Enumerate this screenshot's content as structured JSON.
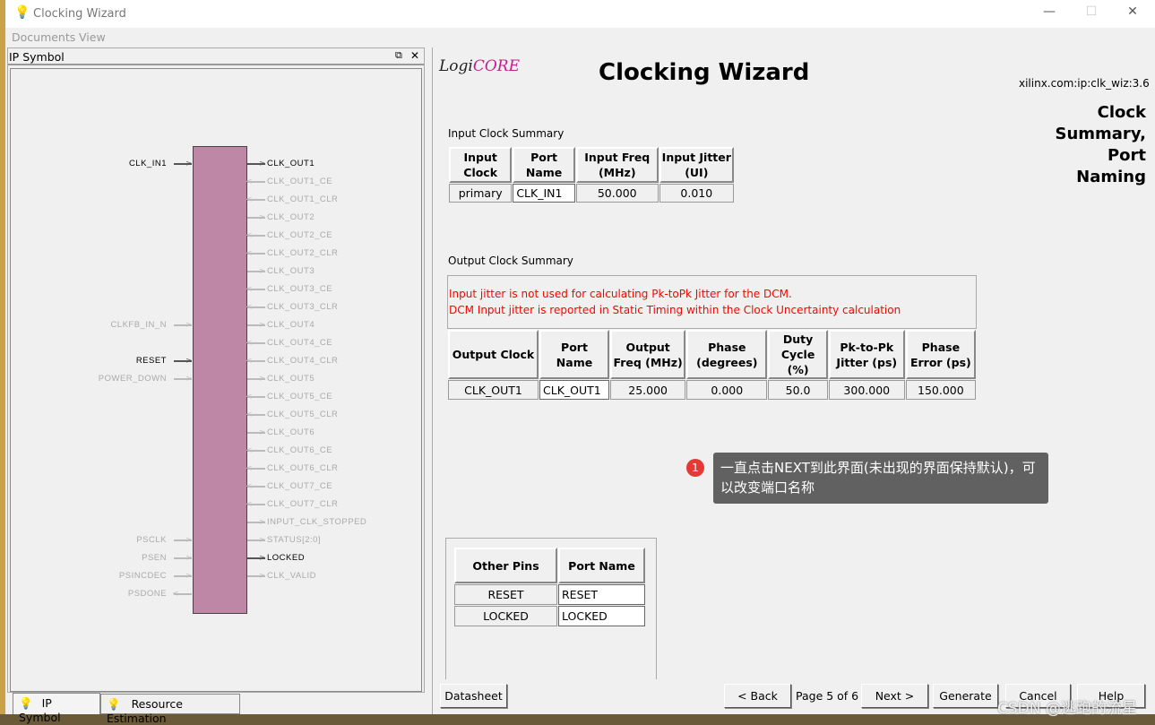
{
  "window": {
    "title": "Clocking Wizard",
    "minimize": "—",
    "maximize": "☐",
    "close": "✕"
  },
  "menu": [
    "Documents",
    "View"
  ],
  "left_panel": {
    "title": "IP Symbol",
    "restore_icon": "⧉",
    "close_icon": "✕",
    "left_pins": [
      {
        "name": "CLK_IN1",
        "active": true,
        "dir": "in"
      },
      {
        "name": "CLKFB_IN_N",
        "active": false,
        "dir": "in"
      },
      {
        "name": "RESET",
        "active": true,
        "dir": "in"
      },
      {
        "name": "POWER_DOWN",
        "active": false,
        "dir": "in"
      },
      {
        "name": "PSCLK",
        "active": false,
        "dir": "in"
      },
      {
        "name": "PSEN",
        "active": false,
        "dir": "in"
      },
      {
        "name": "PSINCDEC",
        "active": false,
        "dir": "in"
      },
      {
        "name": "PSDONE",
        "active": false,
        "dir": "out"
      }
    ],
    "right_pins": [
      {
        "name": "CLK_OUT1",
        "active": true,
        "dir": "out"
      },
      {
        "name": "CLK_OUT1_CE",
        "active": false,
        "dir": "in"
      },
      {
        "name": "CLK_OUT1_CLR",
        "active": false,
        "dir": "in"
      },
      {
        "name": "CLK_OUT2",
        "active": false,
        "dir": "out"
      },
      {
        "name": "CLK_OUT2_CE",
        "active": false,
        "dir": "in"
      },
      {
        "name": "CLK_OUT2_CLR",
        "active": false,
        "dir": "in"
      },
      {
        "name": "CLK_OUT3",
        "active": false,
        "dir": "out"
      },
      {
        "name": "CLK_OUT3_CE",
        "active": false,
        "dir": "in"
      },
      {
        "name": "CLK_OUT3_CLR",
        "active": false,
        "dir": "in"
      },
      {
        "name": "CLK_OUT4",
        "active": false,
        "dir": "out"
      },
      {
        "name": "CLK_OUT4_CE",
        "active": false,
        "dir": "in"
      },
      {
        "name": "CLK_OUT4_CLR",
        "active": false,
        "dir": "in"
      },
      {
        "name": "CLK_OUT5",
        "active": false,
        "dir": "out"
      },
      {
        "name": "CLK_OUT5_CE",
        "active": false,
        "dir": "in"
      },
      {
        "name": "CLK_OUT5_CLR",
        "active": false,
        "dir": "in"
      },
      {
        "name": "CLK_OUT6",
        "active": false,
        "dir": "out"
      },
      {
        "name": "CLK_OUT6_CE",
        "active": false,
        "dir": "in"
      },
      {
        "name": "CLK_OUT6_CLR",
        "active": false,
        "dir": "in"
      },
      {
        "name": "CLK_OUT7_CE",
        "active": false,
        "dir": "in"
      },
      {
        "name": "CLK_OUT7_CLR",
        "active": false,
        "dir": "in"
      },
      {
        "name": "INPUT_CLK_STOPPED",
        "active": false,
        "dir": "out"
      },
      {
        "name": "STATUS[2:0]",
        "active": false,
        "dir": "out"
      },
      {
        "name": "LOCKED",
        "active": true,
        "dir": "out"
      },
      {
        "name": "CLK_VALID",
        "active": false,
        "dir": "out"
      }
    ],
    "tabs": [
      "IP Symbol",
      "Resource Estimation"
    ]
  },
  "header": {
    "logo": "LogiCORE",
    "title": "Clocking Wizard",
    "ip_id": "xilinx.com:ip:clk_wiz:3.6",
    "page_title": [
      "Clock",
      "Summary,",
      "Port",
      "Naming"
    ]
  },
  "input_clock": {
    "label": "Input Clock Summary",
    "headers": [
      "Input Clock",
      "Port Name",
      "Input Freq (MHz)",
      "Input Jitter (UI)"
    ],
    "row": [
      "primary",
      "CLK_IN1",
      "50.000",
      "0.010"
    ]
  },
  "output_clock": {
    "label": "Output Clock Summary",
    "notes": [
      "Input jitter is not used for calculating Pk-toPk Jitter for the DCM.",
      "DCM Input jitter is reported in Static Timing within the Clock Uncertainty calculation"
    ],
    "headers": [
      "Output Clock",
      "Port Name",
      "Output Freq (MHz)",
      "Phase (degrees)",
      "Duty Cycle (%)",
      "Pk-to-Pk Jitter (ps)",
      "Phase Error (ps)"
    ],
    "row": [
      "CLK_OUT1",
      "CLK_OUT1",
      "25.000",
      "0.000",
      "50.0",
      "300.000",
      "150.000"
    ]
  },
  "other_pins": {
    "headers": [
      "Other Pins",
      "Port Name"
    ],
    "rows": [
      [
        "RESET",
        "RESET"
      ],
      [
        "LOCKED",
        "LOCKED"
      ]
    ]
  },
  "annotation": {
    "number": "1",
    "text": "一直点击NEXT到此界面(未出现的界面保持默认)，可以改变端口名称"
  },
  "footer": {
    "datasheet": "Datasheet",
    "back": "< Back",
    "page": "Page 5 of 6",
    "next": "Next >",
    "generate": "Generate",
    "cancel": "Cancel",
    "help": "Help"
  },
  "watermark": "CSDN @逃跑的流星",
  "colors": {
    "symbol": "#bd87a5",
    "note": "#ff0000",
    "tooltip": "#616161",
    "badge": "#e53935"
  }
}
